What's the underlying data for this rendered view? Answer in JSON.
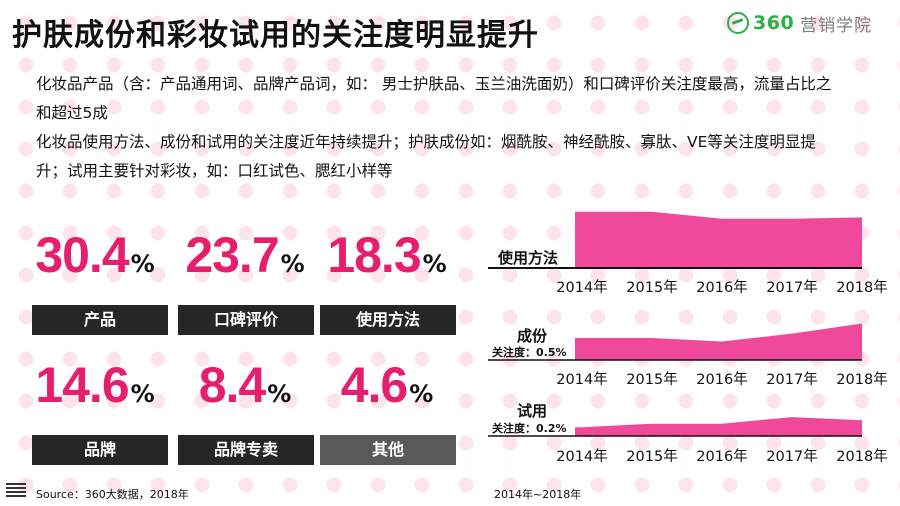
{
  "title": "护肤成份和彩妆试用的关注度明显提升",
  "logo": {
    "number": "360",
    "text": "营销学院"
  },
  "description": [
    "化妆品产品（含：产品通用词、品牌产品词，如： 男士护肤品、玉兰油洗面奶）和口碑评价关注度最高，流量占比之和超过5成",
    "化妆品使用方法、成份和试用的关注度近年持续提升；护肤成份如：烟酰胺、神经酰胺、寡肽、VE等关注度明显提升；试用主要针对彩妆，如：口红试色、腮红小样等"
  ],
  "stats": [
    {
      "value": "30.4",
      "unit": "%",
      "label": "产品"
    },
    {
      "value": "23.7",
      "unit": "%",
      "label": "口碑评价"
    },
    {
      "value": "18.3",
      "unit": "%",
      "label": "使用方法"
    },
    {
      "value": "14.6",
      "unit": "%",
      "label": "品牌"
    },
    {
      "value": "8.4",
      "unit": "%",
      "label": "品牌专卖"
    },
    {
      "value": "4.6",
      "unit": "%",
      "label": "其他"
    }
  ],
  "colors": {
    "accent": "#e61e6e",
    "area": "#f0489a",
    "label_bg": "#262626",
    "label_bg_other": "#595959",
    "logo": "#26b14a"
  },
  "chart_data": [
    {
      "type": "area",
      "title": "使用方法",
      "subtitle": "",
      "categories": [
        "2014年",
        "2015年",
        "2016年",
        "2017年",
        "2018年"
      ],
      "values": [
        1.28,
        1.28,
        1.12,
        1.12,
        1.15
      ],
      "ylim": [
        0,
        1.28
      ]
    },
    {
      "type": "area",
      "title": "成份",
      "subtitle": "关注度：0.5%",
      "categories": [
        "2014年",
        "2015年",
        "2016年",
        "2017年",
        "2018年"
      ],
      "values": [
        0.5,
        0.5,
        0.42,
        0.6,
        0.83
      ],
      "ylim": [
        0,
        1.28
      ]
    },
    {
      "type": "area",
      "title": "试用",
      "subtitle": "关注度：0.2%",
      "categories": [
        "2014年",
        "2015年",
        "2016年",
        "2017年",
        "2018年"
      ],
      "values": [
        0.2,
        0.28,
        0.28,
        0.43,
        0.36
      ],
      "ylim": [
        0,
        1.28
      ]
    }
  ],
  "footer": {
    "source": "Source：360大数据，2018年",
    "period": "2014年~2018年"
  }
}
